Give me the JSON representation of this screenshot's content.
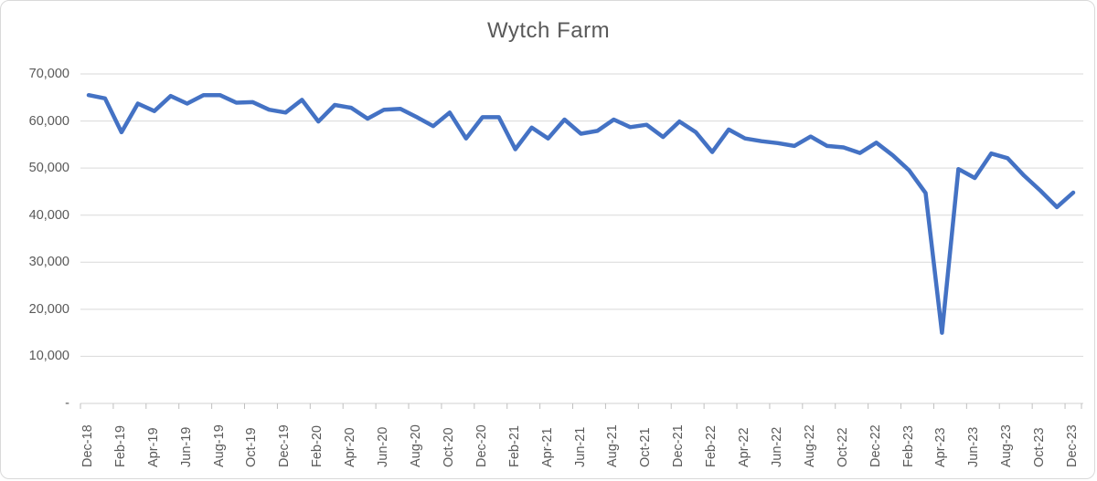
{
  "chart": {
    "title": "Wytch Farm"
  },
  "chart_data": {
    "type": "line",
    "title": "Wytch Farm",
    "xlabel": "",
    "ylabel": "",
    "legend": "none",
    "grid": "horizontal",
    "x_label_rotation": -90,
    "x_label_interval": 2,
    "ylim": [
      0,
      70000
    ],
    "ytick_values": [
      70000,
      60000,
      50000,
      40000,
      30000,
      20000,
      10000,
      0
    ],
    "ytick_labels": [
      "70,000",
      "60,000",
      "50,000",
      "40,000",
      "30,000",
      "20,000",
      "10,000",
      "-"
    ],
    "x": [
      "Dec-18",
      "Jan-19",
      "Feb-19",
      "Mar-19",
      "Apr-19",
      "May-19",
      "Jun-19",
      "Jul-19",
      "Aug-19",
      "Sep-19",
      "Oct-19",
      "Nov-19",
      "Dec-19",
      "Jan-20",
      "Feb-20",
      "Mar-20",
      "Apr-20",
      "May-20",
      "Jun-20",
      "Jul-20",
      "Aug-20",
      "Sep-20",
      "Oct-20",
      "Nov-20",
      "Dec-20",
      "Jan-21",
      "Feb-21",
      "Mar-21",
      "Apr-21",
      "May-21",
      "Jun-21",
      "Jul-21",
      "Aug-21",
      "Sep-21",
      "Oct-21",
      "Nov-21",
      "Dec-21",
      "Jan-22",
      "Feb-22",
      "Mar-22",
      "Apr-22",
      "May-22",
      "Jun-22",
      "Jul-22",
      "Aug-22",
      "Sep-22",
      "Oct-22",
      "Nov-22",
      "Dec-22",
      "Jan-23",
      "Feb-23",
      "Mar-23",
      "Apr-23",
      "May-23",
      "Jun-23",
      "Jul-23",
      "Aug-23",
      "Sep-23",
      "Oct-23",
      "Nov-23",
      "Dec-23"
    ],
    "xtick_labels_shown": [
      "Dec-18",
      "Feb-19",
      "Apr-19",
      "Jun-19",
      "Aug-19",
      "Oct-19",
      "Dec-19",
      "Feb-20",
      "Apr-20",
      "Jun-20",
      "Aug-20",
      "Oct-20",
      "Dec-20",
      "Feb-21",
      "Apr-21",
      "Jun-21",
      "Aug-21",
      "Oct-21",
      "Dec-21",
      "Feb-22",
      "Apr-22",
      "Jun-22",
      "Aug-22",
      "Oct-22",
      "Dec-22",
      "Feb-23",
      "Apr-23",
      "Jun-23",
      "Aug-23",
      "Oct-23",
      "Dec-23"
    ],
    "series": [
      {
        "name": "Wytch Farm",
        "values": [
          65500,
          64800,
          57600,
          63700,
          62100,
          65300,
          63700,
          65500,
          65500,
          63900,
          64000,
          62400,
          61800,
          64500,
          59900,
          63400,
          62800,
          60500,
          62400,
          62600,
          60800,
          58900,
          61800,
          56300,
          60800,
          60800,
          54000,
          58600,
          56300,
          60300,
          57300,
          57900,
          60300,
          58700,
          59200,
          56600,
          59900,
          57600,
          53400,
          58200,
          56300,
          55700,
          55300,
          54700,
          56700,
          54700,
          54400,
          53200,
          55400,
          52700,
          49500,
          44700,
          15000,
          49800,
          47900,
          53100,
          52100,
          48400,
          45200,
          41700,
          44800
        ]
      }
    ],
    "colors": {
      "line": "#4472C4",
      "gridline": "#D9D9D9",
      "axis": "#D9D9D9",
      "tick": "#BFBFBF",
      "text": "#595959",
      "frame_border": "#D9D9D9"
    }
  }
}
